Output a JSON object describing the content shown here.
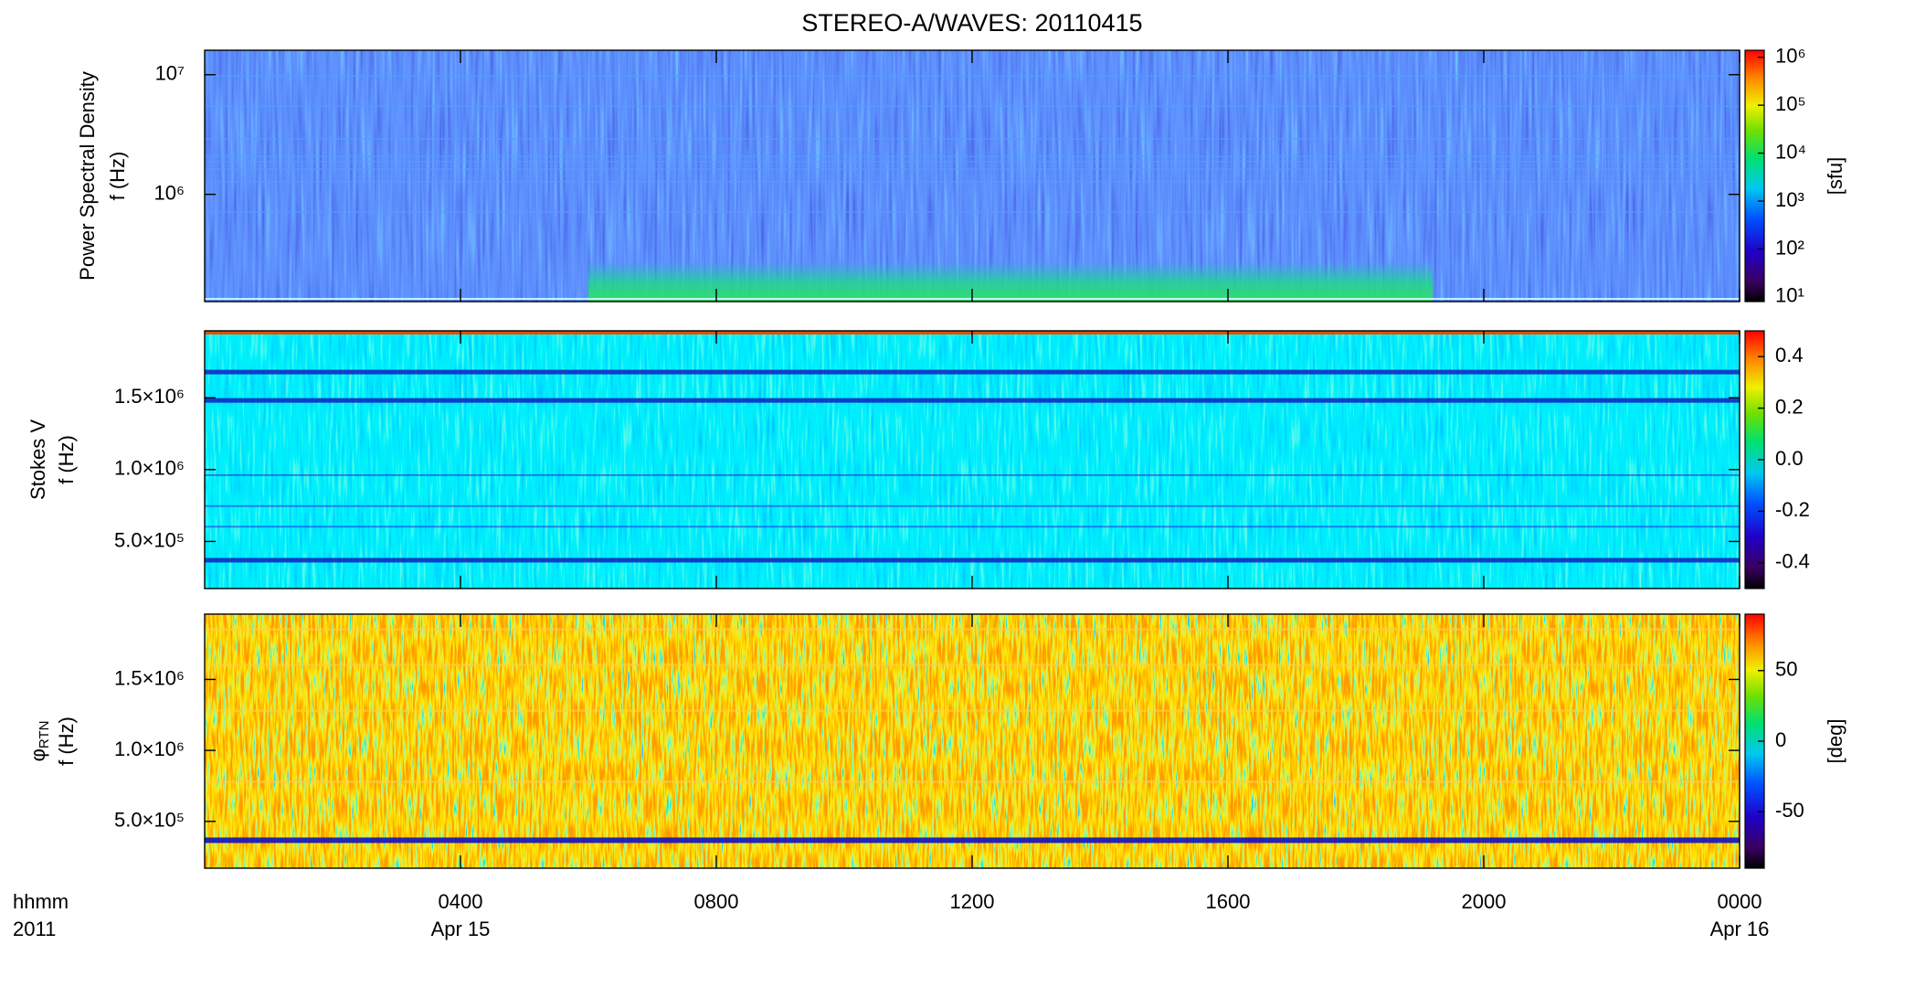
{
  "chart_data": [
    {
      "type": "heatmap",
      "title": "STEREO-A/WAVES: 20110415",
      "ylabel": "Power Spectral Density",
      "ylabel2": "f (Hz)",
      "ylog": true,
      "ylim": [
        127000,
        16000000
      ],
      "yticks": [
        {
          "value": 1000000,
          "label": "10⁶"
        },
        {
          "value": 10000000,
          "label": "10⁷"
        }
      ],
      "colorbar_log": true,
      "clim": [
        8,
        1400000
      ],
      "cticks": [
        {
          "value": 10,
          "label": "10¹"
        },
        {
          "value": 100,
          "label": "10²"
        },
        {
          "value": 1000,
          "label": "10³"
        },
        {
          "value": 10000,
          "label": "10⁴"
        },
        {
          "value": 100000,
          "label": "10⁵"
        },
        {
          "value": 1000000,
          "label": "10⁶"
        }
      ],
      "colorbar_label": "[sfu]"
    },
    {
      "type": "heatmap",
      "ylabel": "Stokes V",
      "ylabel2": "f (Hz)",
      "ylim": [
        172000,
        1966000
      ],
      "yticks": [
        {
          "value": 500000,
          "label": "5.0×10⁵"
        },
        {
          "value": 1000000,
          "label": "1.0×10⁶"
        },
        {
          "value": 1500000,
          "label": "1.5×10⁶"
        }
      ],
      "clim": [
        -0.5,
        0.5
      ],
      "cticks": [
        -0.4,
        -0.2,
        {
          "value": 0,
          "label": "0.0"
        },
        0.2,
        0.4
      ]
    },
    {
      "type": "heatmap",
      "ylabel": "φ",
      "ylabel_sub": "RTN",
      "ylabel2": "f (Hz)",
      "ylim": [
        170000,
        1960000
      ],
      "yticks": [
        {
          "value": 500000,
          "label": "5.0×10⁵"
        },
        {
          "value": 1000000,
          "label": "1.0×10⁶"
        },
        {
          "value": 1500000,
          "label": "1.5×10⁶"
        }
      ],
      "clim": [
        -90,
        90
      ],
      "cticks": [
        -50,
        0,
        50
      ],
      "colorbar_label": "[deg]",
      "xlim": [
        0,
        24
      ],
      "xticks": [
        {
          "value": 4,
          "label": "0400"
        },
        {
          "value": 8,
          "label": "0800"
        },
        {
          "value": 12,
          "label": "1200"
        },
        {
          "value": 16,
          "label": "1600"
        },
        {
          "value": 20,
          "label": "2000"
        },
        {
          "value": 24,
          "label": "0000"
        }
      ],
      "x_date_labels": [
        {
          "value": 4,
          "label": "Apr 15"
        },
        {
          "value": 24,
          "label": "Apr 16"
        }
      ],
      "xlabel": "hhmm",
      "xlabel2": "2011"
    }
  ]
}
